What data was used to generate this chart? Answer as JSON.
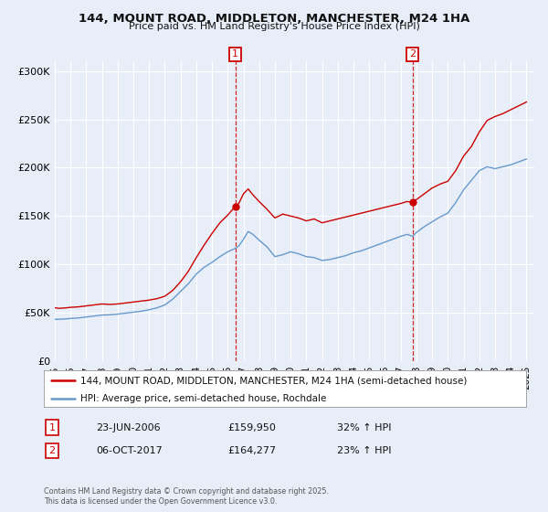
{
  "title": "144, MOUNT ROAD, MIDDLETON, MANCHESTER, M24 1HA",
  "subtitle": "Price paid vs. HM Land Registry's House Price Index (HPI)",
  "ylim": [
    0,
    310000
  ],
  "xlim_start": 1995.0,
  "xlim_end": 2025.5,
  "yticks": [
    0,
    50000,
    100000,
    150000,
    200000,
    250000,
    300000
  ],
  "ytick_labels": [
    "£0",
    "£50K",
    "£100K",
    "£150K",
    "£200K",
    "£250K",
    "£300K"
  ],
  "xtick_years": [
    1995,
    1996,
    1997,
    1998,
    1999,
    2000,
    2001,
    2002,
    2003,
    2004,
    2005,
    2006,
    2007,
    2008,
    2009,
    2010,
    2011,
    2012,
    2013,
    2014,
    2015,
    2016,
    2017,
    2018,
    2019,
    2020,
    2021,
    2022,
    2023,
    2024,
    2025
  ],
  "background_color": "#e8eef8",
  "grid_color": "#ffffff",
  "red_line_color": "#cc0000",
  "blue_line_color": "#6699cc",
  "marker1_date": 2006.48,
  "marker2_date": 2017.76,
  "marker1_value": 159950,
  "marker2_value": 164277,
  "vline_color": "#cc0000",
  "annotation_box_color": "#cc0000",
  "legend_label_red": "144, MOUNT ROAD, MIDDLETON, MANCHESTER, M24 1HA (semi-detached house)",
  "legend_label_blue": "HPI: Average price, semi-detached house, Rochdale",
  "note1_label": "1",
  "note1_date": "23-JUN-2006",
  "note1_price": "£159,950",
  "note1_hpi": "32% ↑ HPI",
  "note2_label": "2",
  "note2_date": "06-OCT-2017",
  "note2_price": "£164,277",
  "note2_hpi": "23% ↑ HPI",
  "footer": "Contains HM Land Registry data © Crown copyright and database right 2025.\nThis data is licensed under the Open Government Licence v3.0.",
  "red_series": [
    [
      1995.0,
      55000
    ],
    [
      1995.3,
      54500
    ],
    [
      1995.6,
      54800
    ],
    [
      1996.0,
      55500
    ],
    [
      1996.5,
      56000
    ],
    [
      1997.0,
      57000
    ],
    [
      1997.5,
      58000
    ],
    [
      1998.0,
      59000
    ],
    [
      1998.5,
      58500
    ],
    [
      1999.0,
      59000
    ],
    [
      1999.5,
      60000
    ],
    [
      2000.0,
      61000
    ],
    [
      2000.5,
      62000
    ],
    [
      2001.0,
      63000
    ],
    [
      2001.5,
      64500
    ],
    [
      2002.0,
      67000
    ],
    [
      2002.5,
      73000
    ],
    [
      2003.0,
      82000
    ],
    [
      2003.5,
      93000
    ],
    [
      2004.0,
      107000
    ],
    [
      2004.5,
      120000
    ],
    [
      2005.0,
      132000
    ],
    [
      2005.5,
      143000
    ],
    [
      2006.0,
      151000
    ],
    [
      2006.48,
      159950
    ],
    [
      2006.7,
      163000
    ],
    [
      2007.0,
      173000
    ],
    [
      2007.3,
      178000
    ],
    [
      2007.6,
      172000
    ],
    [
      2008.0,
      165000
    ],
    [
      2008.5,
      157000
    ],
    [
      2009.0,
      148000
    ],
    [
      2009.5,
      152000
    ],
    [
      2010.0,
      150000
    ],
    [
      2010.5,
      148000
    ],
    [
      2011.0,
      145000
    ],
    [
      2011.5,
      147000
    ],
    [
      2012.0,
      143000
    ],
    [
      2012.5,
      145000
    ],
    [
      2013.0,
      147000
    ],
    [
      2013.5,
      149000
    ],
    [
      2014.0,
      151000
    ],
    [
      2014.5,
      153000
    ],
    [
      2015.0,
      155000
    ],
    [
      2015.5,
      157000
    ],
    [
      2016.0,
      159000
    ],
    [
      2016.5,
      161000
    ],
    [
      2017.0,
      163000
    ],
    [
      2017.4,
      165000
    ],
    [
      2017.76,
      164277
    ],
    [
      2018.0,
      167000
    ],
    [
      2018.5,
      173000
    ],
    [
      2019.0,
      179000
    ],
    [
      2019.5,
      183000
    ],
    [
      2020.0,
      186000
    ],
    [
      2020.5,
      197000
    ],
    [
      2021.0,
      212000
    ],
    [
      2021.5,
      222000
    ],
    [
      2022.0,
      237000
    ],
    [
      2022.5,
      249000
    ],
    [
      2023.0,
      253000
    ],
    [
      2023.5,
      256000
    ],
    [
      2024.0,
      260000
    ],
    [
      2024.5,
      264000
    ],
    [
      2025.0,
      268000
    ]
  ],
  "blue_series": [
    [
      1995.0,
      43000
    ],
    [
      1995.3,
      43200
    ],
    [
      1995.6,
      43400
    ],
    [
      1996.0,
      44000
    ],
    [
      1996.5,
      44500
    ],
    [
      1997.0,
      45500
    ],
    [
      1997.5,
      46500
    ],
    [
      1998.0,
      47500
    ],
    [
      1998.5,
      47800
    ],
    [
      1999.0,
      48500
    ],
    [
      1999.5,
      49500
    ],
    [
      2000.0,
      50500
    ],
    [
      2000.5,
      51500
    ],
    [
      2001.0,
      53000
    ],
    [
      2001.5,
      55000
    ],
    [
      2002.0,
      58000
    ],
    [
      2002.5,
      64000
    ],
    [
      2003.0,
      72000
    ],
    [
      2003.5,
      80000
    ],
    [
      2004.0,
      90000
    ],
    [
      2004.5,
      97000
    ],
    [
      2005.0,
      102000
    ],
    [
      2005.5,
      108000
    ],
    [
      2006.0,
      113000
    ],
    [
      2006.48,
      116500
    ],
    [
      2006.7,
      119000
    ],
    [
      2007.0,
      126000
    ],
    [
      2007.3,
      134000
    ],
    [
      2007.6,
      131000
    ],
    [
      2008.0,
      125000
    ],
    [
      2008.5,
      118000
    ],
    [
      2009.0,
      108000
    ],
    [
      2009.5,
      110000
    ],
    [
      2010.0,
      113000
    ],
    [
      2010.5,
      111000
    ],
    [
      2011.0,
      108000
    ],
    [
      2011.5,
      107000
    ],
    [
      2012.0,
      104000
    ],
    [
      2012.5,
      105000
    ],
    [
      2013.0,
      107000
    ],
    [
      2013.5,
      109000
    ],
    [
      2014.0,
      112000
    ],
    [
      2014.5,
      114000
    ],
    [
      2015.0,
      117000
    ],
    [
      2015.5,
      120000
    ],
    [
      2016.0,
      123000
    ],
    [
      2016.5,
      126000
    ],
    [
      2017.0,
      129000
    ],
    [
      2017.4,
      131000
    ],
    [
      2017.76,
      129000
    ],
    [
      2018.0,
      133000
    ],
    [
      2018.5,
      139000
    ],
    [
      2019.0,
      144000
    ],
    [
      2019.5,
      149000
    ],
    [
      2020.0,
      153000
    ],
    [
      2020.5,
      164000
    ],
    [
      2021.0,
      177000
    ],
    [
      2021.5,
      187000
    ],
    [
      2022.0,
      197000
    ],
    [
      2022.5,
      201000
    ],
    [
      2023.0,
      199000
    ],
    [
      2023.5,
      201000
    ],
    [
      2024.0,
      203000
    ],
    [
      2024.5,
      206000
    ],
    [
      2025.0,
      209000
    ]
  ]
}
